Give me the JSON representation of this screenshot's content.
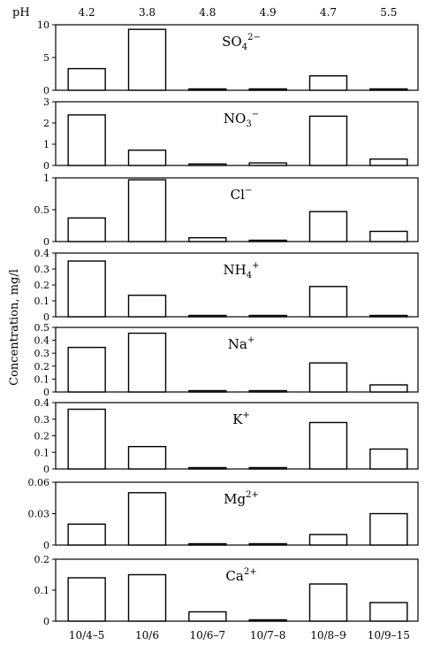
{
  "chart_data": {
    "type": "bar",
    "ylabel": "Concentration, mg/l",
    "ph_label": "pH",
    "ph_values": [
      "4.2",
      "3.8",
      "4.8",
      "4.9",
      "4.7",
      "5.5"
    ],
    "categories": [
      "10/4–5",
      "10/6",
      "10/6–7",
      "10/7–8",
      "10/8–9",
      "10/9–15"
    ],
    "panels": [
      {
        "ion": "SO4",
        "ion_sub": "4",
        "ion_base": "SO",
        "ion_sup": "2−",
        "ylim": [
          0,
          10
        ],
        "ticks": [
          "10",
          "5",
          "0"
        ],
        "tick_values": [
          10,
          5,
          0
        ],
        "values": [
          3.3,
          9.3,
          0.2,
          0.1,
          2.2,
          0.15
        ]
      },
      {
        "ion": "NO3",
        "ion_sub": "3",
        "ion_base": "NO",
        "ion_sup": "−",
        "ylim": [
          0,
          3
        ],
        "ticks": [
          "3",
          "2",
          "1",
          "0"
        ],
        "tick_values": [
          3,
          2,
          1,
          0
        ],
        "values": [
          2.38,
          0.72,
          0.07,
          0.12,
          2.32,
          0.3
        ]
      },
      {
        "ion": "Cl",
        "ion_sub": "",
        "ion_base": "Cl",
        "ion_sup": "−",
        "ylim": [
          0,
          1
        ],
        "ticks": [
          "1",
          "0.5",
          "0"
        ],
        "tick_values": [
          1,
          0.5,
          0
        ],
        "values": [
          0.37,
          0.97,
          0.06,
          0.02,
          0.47,
          0.16
        ]
      },
      {
        "ion": "NH4",
        "ion_sub": "4",
        "ion_base": "NH",
        "ion_sup": "+",
        "ylim": [
          0,
          0.4
        ],
        "ticks": [
          "0.4",
          "0.3",
          "0.2",
          "0.1",
          "0"
        ],
        "tick_values": [
          0.4,
          0.3,
          0.2,
          0.1,
          0
        ],
        "values": [
          0.35,
          0.135,
          0,
          0,
          0.19,
          0.005
        ]
      },
      {
        "ion": "Na",
        "ion_sub": "",
        "ion_base": "Na",
        "ion_sup": "+",
        "ylim": [
          0,
          0.5
        ],
        "ticks": [
          "0.5",
          "0.4",
          "0.3",
          "0.2",
          "0.1",
          "0"
        ],
        "tick_values": [
          0.5,
          0.4,
          0.3,
          0.2,
          0.1,
          0
        ],
        "values": [
          0.345,
          0.455,
          0.005,
          0.01,
          0.225,
          0.055
        ]
      },
      {
        "ion": "K",
        "ion_sub": "",
        "ion_base": "K",
        "ion_sup": "+",
        "ylim": [
          0,
          0.4
        ],
        "ticks": [
          "0.4",
          "0.3",
          "0.2",
          "0.1",
          "0"
        ],
        "tick_values": [
          0.4,
          0.3,
          0.2,
          0.1,
          0
        ],
        "values": [
          0.36,
          0.135,
          0,
          0,
          0.28,
          0.12
        ]
      },
      {
        "ion": "Mg",
        "ion_sub": "",
        "ion_base": "Mg",
        "ion_sup": "2+",
        "ylim": [
          0,
          0.06
        ],
        "ticks": [
          "0.06",
          "0.03",
          "0"
        ],
        "tick_values": [
          0.06,
          0.03,
          0
        ],
        "values": [
          0.02,
          0.05,
          0,
          0,
          0.01,
          0.03
        ]
      },
      {
        "ion": "Ca",
        "ion_sub": "",
        "ion_base": "Ca",
        "ion_sup": "2+",
        "ylim": [
          0,
          0.2
        ],
        "ticks": [
          "0.2",
          "0.1",
          "0"
        ],
        "tick_values": [
          0.2,
          0.1,
          0
        ],
        "values": [
          0.14,
          0.15,
          0.03,
          0,
          0.12,
          0.06
        ]
      }
    ]
  }
}
